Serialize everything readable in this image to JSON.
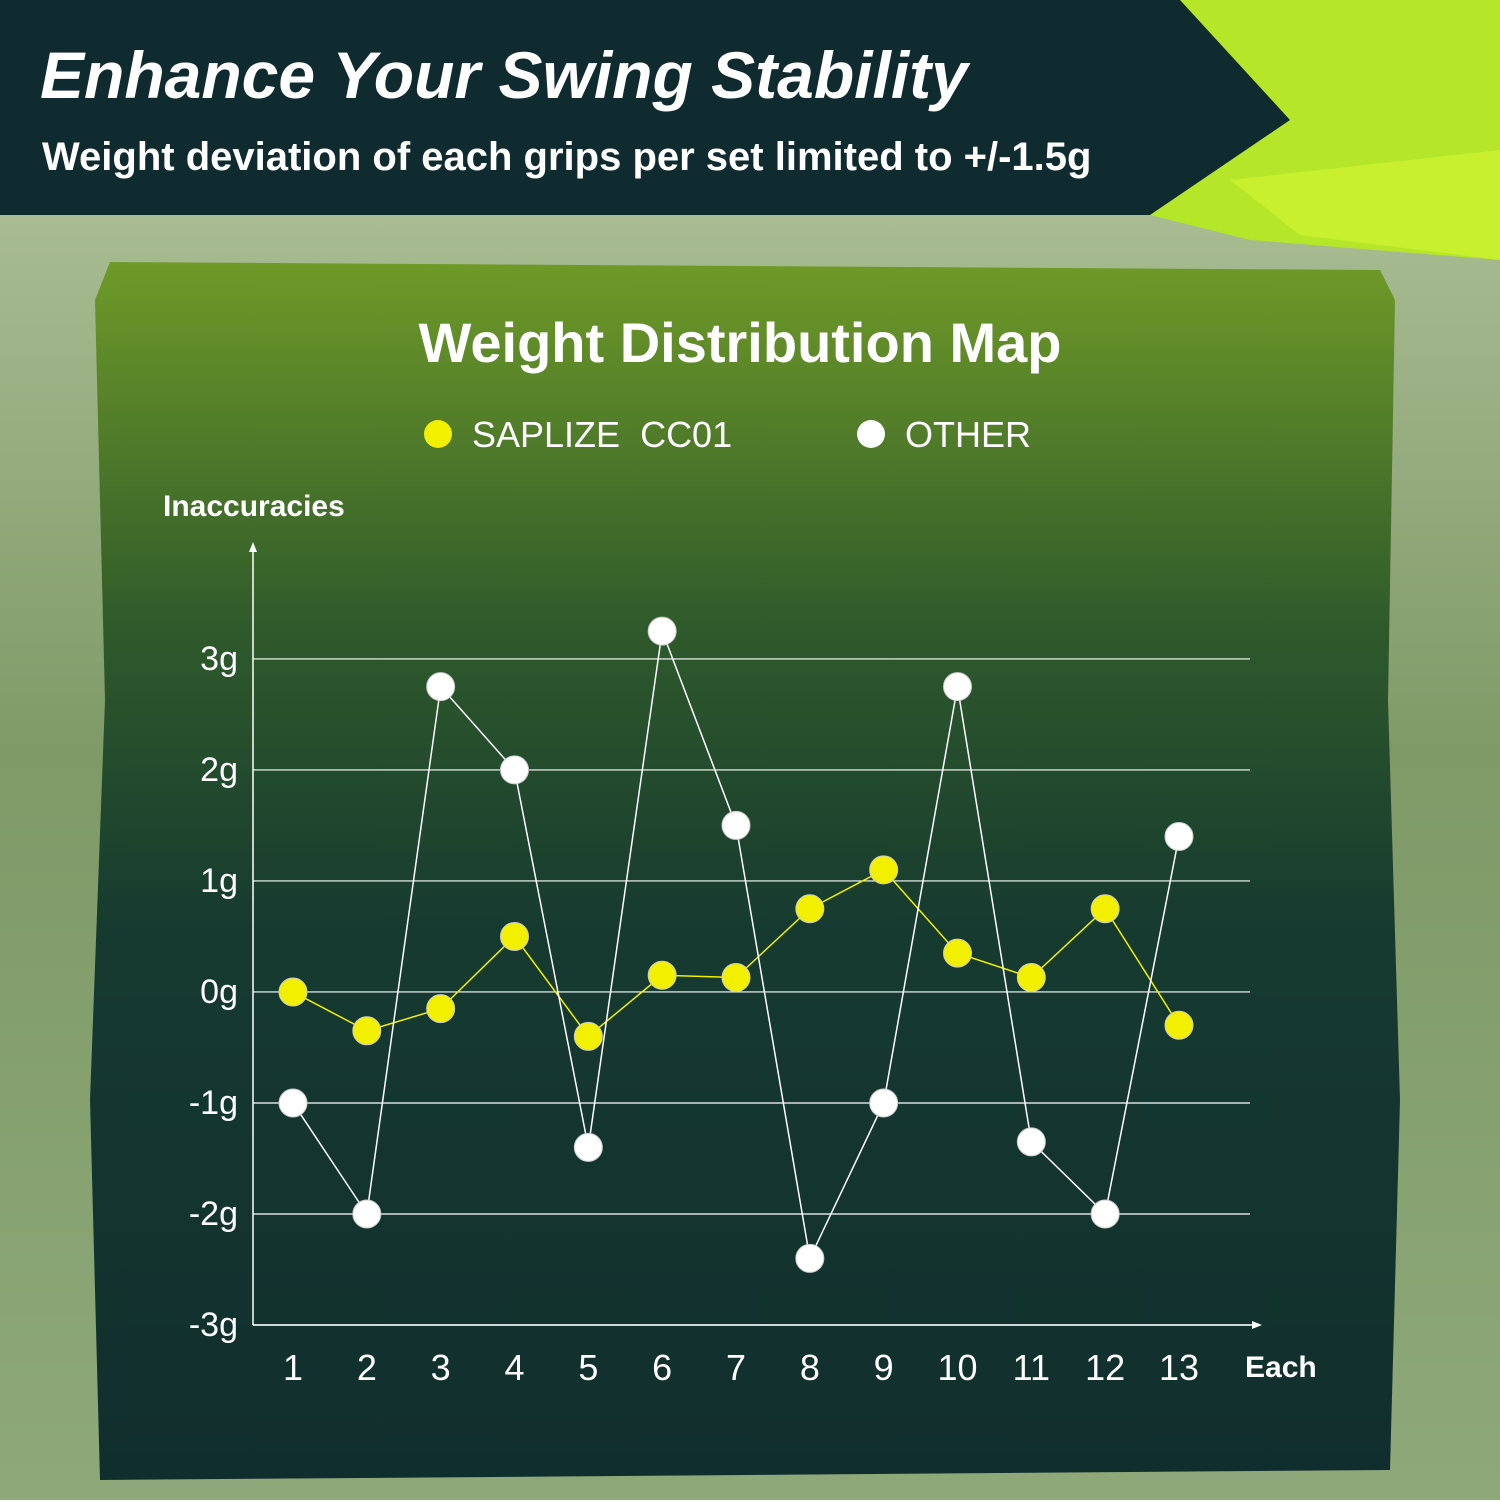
{
  "header": {
    "title": "Enhance Your Swing Stability",
    "subtitle": "Weight deviation of each grips per set limited to +/-1.5g"
  },
  "chart_data": {
    "type": "line",
    "title": "Weight Distribution Map",
    "y_label": "Inaccuracies",
    "x_label": "Each",
    "categories": [
      "1",
      "2",
      "3",
      "4",
      "5",
      "6",
      "7",
      "8",
      "9",
      "10",
      "11",
      "12",
      "13"
    ],
    "series": [
      {
        "name": "SAPLIZE  CC01",
        "color": "#f2ef00",
        "values": [
          0,
          -0.35,
          -0.15,
          0.5,
          -0.4,
          0.15,
          0.13,
          0.75,
          1.1,
          0.35,
          0.13,
          0.75,
          -0.3
        ]
      },
      {
        "name": "OTHER",
        "color": "#ffffff",
        "values": [
          -1,
          -2,
          2.75,
          2,
          -1.4,
          3.25,
          1.5,
          -2.4,
          -1,
          2.75,
          -1.35,
          -2,
          1.4
        ]
      }
    ],
    "ylim": [
      -3,
      3.9
    ],
    "yticks": [
      {
        "value": -3,
        "label": "-3g"
      },
      {
        "value": -2,
        "label": "-2g"
      },
      {
        "value": -1,
        "label": "-1g"
      },
      {
        "value": 0,
        "label": "0g"
      },
      {
        "value": 1,
        "label": "1g"
      },
      {
        "value": 2,
        "label": "2g"
      },
      {
        "value": 3,
        "label": "3g"
      }
    ],
    "grid": true
  }
}
